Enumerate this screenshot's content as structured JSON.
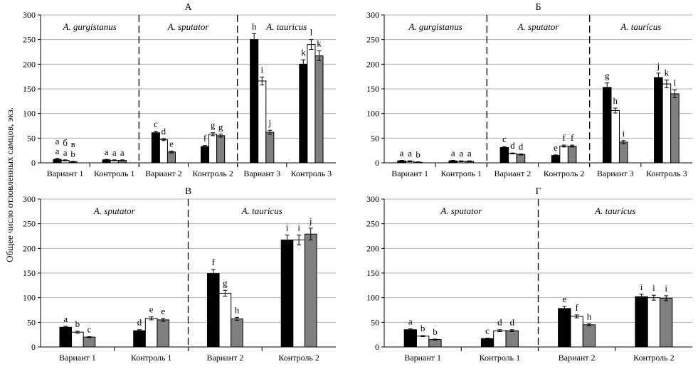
{
  "figure": {
    "ylabel": "Общее число отловленных самцов, экз.",
    "colors": {
      "series1": "#000000",
      "series2": "#ffffff",
      "series3": "#808080",
      "grid": "#b0b0b0"
    }
  },
  "chart_data": [
    {
      "panel": "A",
      "title": "А",
      "type": "bar",
      "ylim": [
        0,
        300
      ],
      "yticks": [
        0,
        50,
        100,
        150,
        200,
        250,
        300
      ],
      "groups": [
        {
          "label": "A. gurgistanus",
          "start": 0,
          "end": 2
        },
        {
          "label": "A. sputator",
          "start": 2,
          "end": 4
        },
        {
          "label": "A. tauricus",
          "start": 4,
          "end": 6
        }
      ],
      "categories": [
        "Вариант 1",
        "Контроль 1",
        "Вариант 2",
        "Контроль 2",
        "Вариант 3",
        "Контроль 3"
      ],
      "values": [
        [
          7,
          5,
          2
        ],
        [
          6,
          5,
          5
        ],
        [
          61,
          47,
          22
        ],
        [
          33,
          58,
          55
        ],
        [
          250,
          166,
          62
        ],
        [
          200,
          240,
          217
        ]
      ],
      "errors": [
        [
          2,
          1,
          1
        ],
        [
          1,
          1,
          1
        ],
        [
          3,
          2,
          2
        ],
        [
          2,
          3,
          3
        ],
        [
          12,
          8,
          4
        ],
        [
          9,
          10,
          10
        ]
      ],
      "labels": [
        [
          "a\na",
          "б\na",
          "в\nb"
        ],
        [
          "a",
          "a",
          "a"
        ],
        [
          "c",
          "d",
          "e"
        ],
        [
          "f",
          "g",
          "g"
        ],
        [
          "h",
          "i",
          "j"
        ],
        [
          "k",
          "l",
          "k"
        ]
      ]
    },
    {
      "panel": "B6",
      "title": "Б",
      "type": "bar",
      "ylim": [
        0,
        300
      ],
      "yticks": [
        0,
        50,
        100,
        150,
        200,
        250,
        300
      ],
      "groups": [
        {
          "label": "A. gurgistanus",
          "start": 0,
          "end": 2
        },
        {
          "label": "A. sputator",
          "start": 2,
          "end": 4
        },
        {
          "label": "A. taurícus",
          "start": 4,
          "end": 6
        }
      ],
      "categories": [
        "Вариант 1",
        "Контроль 1",
        "Вариант 2",
        "Контроль 2",
        "Вариант 3",
        "Контроль 3"
      ],
      "values": [
        [
          4,
          3,
          1
        ],
        [
          4,
          3,
          3
        ],
        [
          31,
          19,
          17
        ],
        [
          15,
          34,
          34
        ],
        [
          153,
          106,
          42
        ],
        [
          173,
          160,
          140
        ]
      ],
      "errors": [
        [
          1,
          1,
          1
        ],
        [
          1,
          1,
          1
        ],
        [
          2,
          1,
          1
        ],
        [
          1,
          2,
          2
        ],
        [
          9,
          5,
          3
        ],
        [
          9,
          8,
          8
        ]
      ],
      "labels": [
        [
          "a",
          "a",
          "b"
        ],
        [
          "a",
          "a",
          "a"
        ],
        [
          "c",
          "d",
          "d"
        ],
        [
          "e",
          "f",
          "f"
        ],
        [
          "g",
          "h",
          "i"
        ],
        [
          "j",
          "k",
          "l"
        ]
      ]
    },
    {
      "panel": "V",
      "title": "В",
      "type": "bar",
      "ylim": [
        0,
        300
      ],
      "yticks": [
        0,
        50,
        100,
        150,
        200,
        250,
        300
      ],
      "groups": [
        {
          "label": "A. sputator",
          "start": 0,
          "end": 2
        },
        {
          "label": "A. tauricus",
          "start": 2,
          "end": 4
        }
      ],
      "categories": [
        "Вариант 1",
        "Контроль 1",
        "Вариант 2",
        "Контроль 2"
      ],
      "values": [
        [
          40,
          30,
          20
        ],
        [
          33,
          58,
          55
        ],
        [
          149,
          109,
          57
        ],
        [
          217,
          217,
          229
        ]
      ],
      "errors": [
        [
          2,
          2,
          1
        ],
        [
          2,
          3,
          3
        ],
        [
          8,
          6,
          3
        ],
        [
          10,
          10,
          12
        ]
      ],
      "labels": [
        [
          "a",
          "b",
          "c"
        ],
        [
          "d",
          "e",
          "e"
        ],
        [
          "f",
          "g",
          "h"
        ],
        [
          "i",
          "i",
          "j"
        ]
      ]
    },
    {
      "panel": "G",
      "title": "Г",
      "type": "bar",
      "ylim": [
        0,
        300
      ],
      "yticks": [
        0,
        50,
        100,
        150,
        200,
        250,
        300
      ],
      "groups": [
        {
          "label": "A. sputator",
          "start": 0,
          "end": 2
        },
        {
          "label": "A. taurícus",
          "start": 2,
          "end": 4
        }
      ],
      "categories": [
        "Вариант 1",
        "Контроль 1",
        "Вариант 2",
        "Контроль 2"
      ],
      "values": [
        [
          35,
          22,
          15
        ],
        [
          17,
          33,
          33
        ],
        [
          78,
          62,
          45
        ],
        [
          102,
          100,
          99
        ]
      ],
      "errors": [
        [
          2,
          1,
          1
        ],
        [
          1,
          2,
          2
        ],
        [
          4,
          3,
          2
        ],
        [
          5,
          5,
          5
        ]
      ],
      "labels": [
        [
          "a",
          "b",
          "b"
        ],
        [
          "c",
          "d",
          "d"
        ],
        [
          "e",
          "f",
          "h"
        ],
        [
          "i",
          "i",
          "i"
        ]
      ]
    }
  ]
}
